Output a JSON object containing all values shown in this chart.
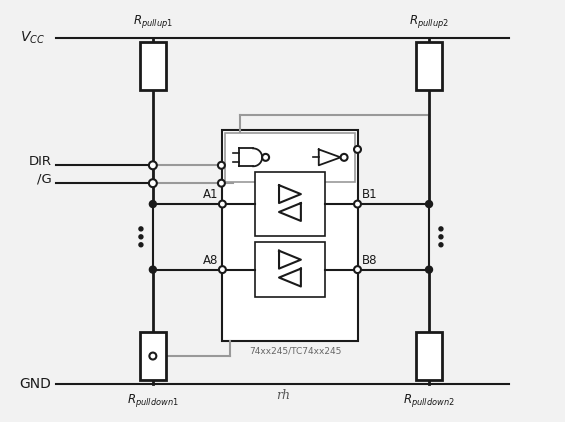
{
  "bg_color": "#f2f2f2",
  "line_color": "#1a1a1a",
  "gray_color": "#999999",
  "vcc_label": "$V_{CC}$",
  "gnd_label": "GND",
  "dir_label": "DIR",
  "g_label": "/G",
  "a1_label": "A1",
  "a8_label": "A8",
  "b1_label": "B1",
  "b8_label": "B8",
  "rpullup1_label": "$R_{pullup1}$",
  "rpullup2_label": "$R_{pullup2}$",
  "rpulldown1_label": "$R_{pulldown1}$",
  "rpulldown2_label": "$R_{pulldown2}$",
  "ic_label": "74xx245/TC74xx245",
  "gnd_sym": "rh"
}
